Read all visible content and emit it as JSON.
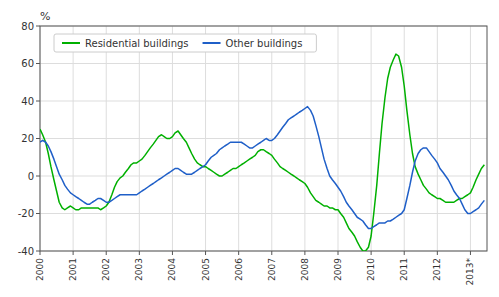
{
  "chart_data": {
    "type": "line",
    "y_label": "%",
    "x": [
      2000.0,
      2000.08,
      2000.17,
      2000.25,
      2000.33,
      2000.42,
      2000.5,
      2000.58,
      2000.67,
      2000.75,
      2000.83,
      2000.92,
      2001.0,
      2001.08,
      2001.17,
      2001.25,
      2001.33,
      2001.42,
      2001.5,
      2001.58,
      2001.67,
      2001.75,
      2001.83,
      2001.92,
      2002.0,
      2002.08,
      2002.17,
      2002.25,
      2002.33,
      2002.42,
      2002.5,
      2002.58,
      2002.67,
      2002.75,
      2002.83,
      2002.92,
      2003.0,
      2003.08,
      2003.17,
      2003.25,
      2003.33,
      2003.42,
      2003.5,
      2003.58,
      2003.67,
      2003.75,
      2003.83,
      2003.92,
      2004.0,
      2004.08,
      2004.17,
      2004.25,
      2004.33,
      2004.42,
      2004.5,
      2004.58,
      2004.67,
      2004.75,
      2004.83,
      2004.92,
      2005.0,
      2005.08,
      2005.17,
      2005.25,
      2005.33,
      2005.42,
      2005.5,
      2005.58,
      2005.67,
      2005.75,
      2005.83,
      2005.92,
      2006.0,
      2006.08,
      2006.17,
      2006.25,
      2006.33,
      2006.42,
      2006.5,
      2006.58,
      2006.67,
      2006.75,
      2006.83,
      2006.92,
      2007.0,
      2007.08,
      2007.17,
      2007.25,
      2007.33,
      2007.42,
      2007.5,
      2007.58,
      2007.67,
      2007.75,
      2007.83,
      2007.92,
      2008.0,
      2008.08,
      2008.17,
      2008.25,
      2008.33,
      2008.42,
      2008.5,
      2008.58,
      2008.67,
      2008.75,
      2008.83,
      2008.92,
      2009.0,
      2009.08,
      2009.17,
      2009.25,
      2009.33,
      2009.42,
      2009.5,
      2009.58,
      2009.67,
      2009.75,
      2009.83,
      2009.92,
      2010.0,
      2010.08,
      2010.17,
      2010.25,
      2010.33,
      2010.42,
      2010.5,
      2010.58,
      2010.67,
      2010.75,
      2010.83,
      2010.92,
      2011.0,
      2011.08,
      2011.17,
      2011.25,
      2011.33,
      2011.42,
      2011.5,
      2011.58,
      2011.67,
      2011.75,
      2011.83,
      2011.92,
      2012.0,
      2012.08,
      2012.17,
      2012.25,
      2012.33,
      2012.42,
      2012.5,
      2012.58,
      2012.67,
      2012.75,
      2012.83,
      2012.92,
      2013.0,
      2013.08,
      2013.17,
      2013.25,
      2013.33,
      2013.42
    ],
    "series": [
      {
        "name": "Residential buildings",
        "color": "#00b000",
        "values": [
          25,
          22,
          18,
          12,
          5,
          -2,
          -8,
          -14,
          -17,
          -18,
          -17,
          -16,
          -17,
          -18,
          -18,
          -17,
          -17,
          -17,
          -17,
          -17,
          -17,
          -17,
          -18,
          -17,
          -16,
          -14,
          -10,
          -6,
          -3,
          -1,
          0,
          2,
          4,
          6,
          7,
          7,
          8,
          9,
          11,
          13,
          15,
          17,
          19,
          21,
          22,
          21,
          20,
          20,
          21,
          23,
          24,
          22,
          20,
          18,
          15,
          12,
          9,
          7,
          6,
          5,
          5,
          4,
          3,
          2,
          1,
          0,
          0,
          1,
          2,
          3,
          4,
          4,
          5,
          6,
          7,
          8,
          9,
          10,
          11,
          13,
          14,
          14,
          13,
          12,
          11,
          9,
          7,
          5,
          4,
          3,
          2,
          1,
          0,
          -1,
          -2,
          -3,
          -4,
          -6,
          -9,
          -11,
          -13,
          -14,
          -15,
          -16,
          -16,
          -17,
          -17,
          -18,
          -18,
          -20,
          -22,
          -25,
          -28,
          -30,
          -32,
          -35,
          -38,
          -40,
          -40,
          -38,
          -32,
          -20,
          -5,
          12,
          28,
          42,
          52,
          58,
          62,
          65,
          64,
          58,
          48,
          35,
          22,
          12,
          5,
          1,
          -2,
          -5,
          -7,
          -9,
          -10,
          -11,
          -12,
          -12,
          -13,
          -14,
          -14,
          -14,
          -14,
          -13,
          -12,
          -12,
          -11,
          -10,
          -9,
          -6,
          -2,
          1,
          4,
          6
        ]
      },
      {
        "name": "Other buildings",
        "color": "#1f5fc8",
        "values": [
          18,
          19,
          18,
          16,
          13,
          9,
          5,
          1,
          -2,
          -5,
          -7,
          -9,
          -10,
          -11,
          -12,
          -13,
          -14,
          -15,
          -15,
          -14,
          -13,
          -12,
          -12,
          -13,
          -14,
          -14,
          -13,
          -12,
          -11,
          -10,
          -10,
          -10,
          -10,
          -10,
          -10,
          -10,
          -9,
          -8,
          -7,
          -6,
          -5,
          -4,
          -3,
          -2,
          -1,
          0,
          1,
          2,
          3,
          4,
          4,
          3,
          2,
          1,
          1,
          1,
          2,
          3,
          4,
          5,
          6,
          8,
          10,
          11,
          12,
          14,
          15,
          16,
          17,
          18,
          18,
          18,
          18,
          18,
          17,
          16,
          15,
          15,
          16,
          17,
          18,
          19,
          20,
          19,
          19,
          20,
          22,
          24,
          26,
          28,
          30,
          31,
          32,
          33,
          34,
          35,
          36,
          37,
          35,
          32,
          27,
          21,
          15,
          9,
          4,
          0,
          -2,
          -4,
          -6,
          -8,
          -11,
          -14,
          -16,
          -18,
          -20,
          -22,
          -23,
          -24,
          -26,
          -28,
          -28,
          -27,
          -26,
          -25,
          -25,
          -25,
          -24,
          -24,
          -23,
          -22,
          -21,
          -20,
          -18,
          -12,
          -5,
          2,
          8,
          12,
          14,
          15,
          15,
          13,
          11,
          9,
          7,
          4,
          2,
          0,
          -2,
          -5,
          -8,
          -10,
          -12,
          -15,
          -18,
          -20,
          -20,
          -19,
          -18,
          -17,
          -15,
          -13
        ]
      }
    ],
    "xlim": [
      2000,
      2013.5
    ],
    "xticks": [
      2000,
      2001,
      2002,
      2003,
      2004,
      2005,
      2006,
      2007,
      2008,
      2009,
      2010,
      2011,
      2012,
      {
        "value": 2013,
        "label": "2013*"
      }
    ],
    "ylim": [
      -40,
      80
    ],
    "yticks": [
      -40,
      -20,
      0,
      20,
      40,
      60,
      80
    ],
    "grid": true,
    "legend": "upper left"
  }
}
